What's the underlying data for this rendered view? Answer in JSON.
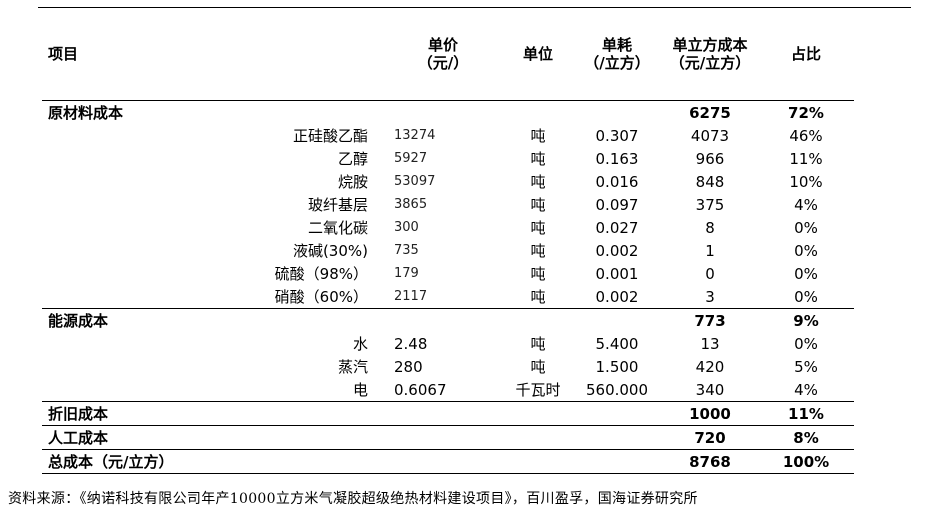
{
  "table": {
    "headers": {
      "item": "项目",
      "price": "单价\n（元/）",
      "unit": "单位",
      "consumption": "单耗\n（/立方）",
      "unit_cost": "单立方成本\n（元/立方）",
      "share": "占比"
    },
    "sections": [
      {
        "name": "原材料成本",
        "cost": "6275",
        "share": "72%",
        "rows": [
          {
            "name": "正硅酸乙酯",
            "price": "13274",
            "unit": "吨",
            "consumption": "0.307",
            "cost": "4073",
            "share": "46%"
          },
          {
            "name": "乙醇",
            "price": "5927",
            "unit": "吨",
            "consumption": "0.163",
            "cost": "966",
            "share": "11%"
          },
          {
            "name": "烷胺",
            "price": "53097",
            "unit": "吨",
            "consumption": "0.016",
            "cost": "848",
            "share": "10%"
          },
          {
            "name": "玻纤基层",
            "price": "3865",
            "unit": "吨",
            "consumption": "0.097",
            "cost": "375",
            "share": "4%"
          },
          {
            "name": "二氧化碳",
            "price": "300",
            "unit": "吨",
            "consumption": "0.027",
            "cost": "8",
            "share": "0%"
          },
          {
            "name": "液碱(30%)",
            "price": "735",
            "unit": "吨",
            "consumption": "0.002",
            "cost": "1",
            "share": "0%"
          },
          {
            "name": "硫酸（98%）",
            "price": "179",
            "unit": "吨",
            "consumption": "0.001",
            "cost": "0",
            "share": "0%"
          },
          {
            "name": "硝酸（60%）",
            "price": "2117",
            "unit": "吨",
            "consumption": "0.002",
            "cost": "3",
            "share": "0%"
          }
        ]
      },
      {
        "name": "能源成本",
        "cost": "773",
        "share": "9%",
        "rows": [
          {
            "name": "水",
            "price": "2.48",
            "unit": "吨",
            "consumption": "5.400",
            "cost": "13",
            "share": "0%"
          },
          {
            "name": "蒸汽",
            "price": "280",
            "unit": "吨",
            "consumption": "1.500",
            "cost": "420",
            "share": "5%"
          },
          {
            "name": "电",
            "price": "0.6067",
            "unit": "千瓦时",
            "consumption": "560.000",
            "cost": "340",
            "share": "4%"
          }
        ]
      },
      {
        "name": "折旧成本",
        "cost": "1000",
        "share": "11%",
        "rows": []
      },
      {
        "name": "人工成本",
        "cost": "720",
        "share": "8%",
        "rows": []
      },
      {
        "name": "总成本（元/立方）",
        "cost": "8768",
        "share": "100%",
        "rows": []
      }
    ]
  },
  "source": "资料来源：《纳诺科技有限公司年产10000立方米气凝胶超级绝热材料建设项目》，百川盈孚，国海证券研究所"
}
